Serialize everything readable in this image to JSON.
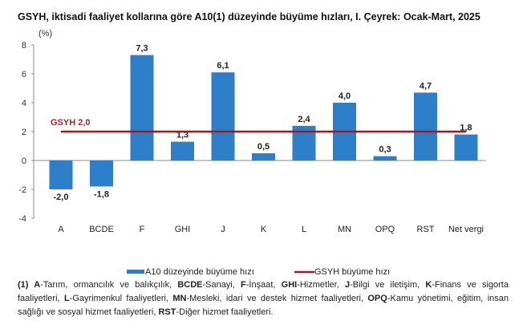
{
  "chart_data": {
    "type": "bar",
    "title": "GSYH, iktisadi faaliyet kollarına göre A10(1) düzeyinde büyüme hızları, I. Çeyrek: Ocak-Mart, 2025",
    "ylabel": "(%)",
    "ylim": [
      -4,
      8
    ],
    "yticks": [
      -4,
      -2,
      0,
      2,
      4,
      6,
      8
    ],
    "grid": false,
    "categories": [
      "A",
      "BCDE",
      "F",
      "GHI",
      "J",
      "K",
      "L",
      "MN",
      "OPQ",
      "RST",
      "Net vergi"
    ],
    "series": [
      {
        "name": "A10 düzeyinde büyüme hızı",
        "type": "bar",
        "color": "#2E7FC9",
        "values": [
          -2.0,
          -1.8,
          7.3,
          1.3,
          6.1,
          0.5,
          2.4,
          4.0,
          0.3,
          4.7,
          1.8
        ],
        "labels": [
          "-2,0",
          "-1,8",
          "7,3",
          "1,3",
          "6,1",
          "0,5",
          "2,4",
          "4,0",
          "0,3",
          "4,7",
          "1,8"
        ]
      },
      {
        "name": "GSYH büyüme hızı",
        "type": "line",
        "color": "#9B1B1F",
        "value": 2.0,
        "label": "GSYH 2,0"
      }
    ],
    "legend_position": "bottom"
  },
  "footnote": {
    "prefix": "(1)",
    "items": [
      {
        "code": "A",
        "text": "-Tarım, ormancılık ve balıkçılık, "
      },
      {
        "code": "BCDE",
        "text": "-Sanayi, "
      },
      {
        "code": "F",
        "text": "-İnşaat, "
      },
      {
        "code": "GHI",
        "text": "-Hizmetler, "
      },
      {
        "code": "J",
        "text": "-Bilgi ve iletişim, "
      },
      {
        "code": "K",
        "text": "-Finans ve sigorta faaliyetleri, "
      },
      {
        "code": "L",
        "text": "-Gayrimenkul faaliyetleri, "
      },
      {
        "code": "MN",
        "text": "-Mesleki, idari ve destek hizmet faaliyetleri, "
      },
      {
        "code": "OPQ",
        "text": "-Kamu yönetimi, eğitim, insan sağlığı ve sosyal hizmet faaliyetleri, "
      },
      {
        "code": "RST",
        "text": "-Diğer hizmet faaliyetleri."
      }
    ]
  }
}
